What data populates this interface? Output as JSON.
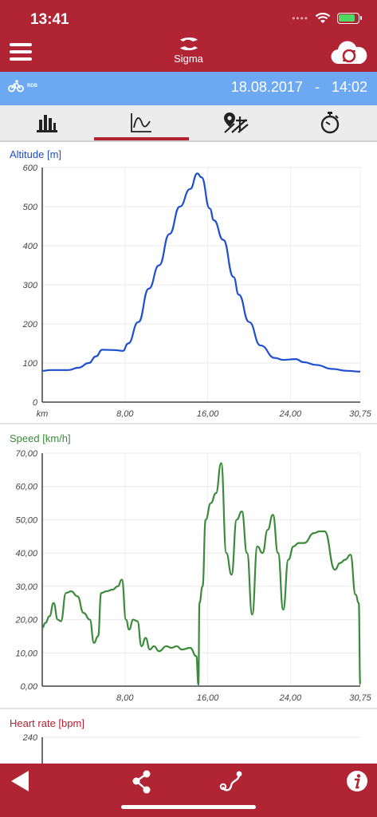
{
  "status": {
    "time": "13:41",
    "battery_level": 0.85
  },
  "header": {
    "app_name": "Sigma"
  },
  "info": {
    "activity_label": "RDB",
    "date": "18.08.2017",
    "separator": "-",
    "time": "14:02"
  },
  "tabs": [
    {
      "icon": "bar-chart-icon",
      "active": false
    },
    {
      "icon": "line-chart-icon",
      "active": true
    },
    {
      "icon": "map-route-icon",
      "active": false
    },
    {
      "icon": "stopwatch-icon",
      "active": false
    }
  ],
  "colors": {
    "brand_red": "#b02434",
    "info_blue": "#6da9f3",
    "altitude": "#1f4fcf",
    "speed": "#3c8a3c",
    "heart_rate": "#b02434"
  },
  "chart_data": [
    {
      "type": "line",
      "title": "Altitude [m]",
      "xlabel": "km",
      "x_ticks": [
        "8,00",
        "16,00",
        "24,00",
        "30,75"
      ],
      "y_ticks": [
        "0",
        "100",
        "200",
        "300",
        "400",
        "500",
        "600"
      ],
      "xlim": [
        0,
        30.75
      ],
      "ylim": [
        0,
        600
      ],
      "x": [
        0,
        0.8,
        2.5,
        3.5,
        4.5,
        5.2,
        5.8,
        7,
        7.8,
        8.3,
        9.3,
        10.3,
        11.3,
        12.3,
        13.3,
        14.3,
        15,
        15.4,
        16.2,
        16.6,
        17.5,
        18.5,
        19,
        20,
        21.1,
        22.5,
        23.3,
        24.5,
        25.3,
        26.5,
        28,
        29.5,
        30.75
      ],
      "values": [
        80,
        82,
        82,
        88,
        100,
        117,
        134,
        133,
        131,
        150,
        205,
        290,
        350,
        430,
        500,
        545,
        585,
        575,
        495,
        465,
        415,
        320,
        275,
        205,
        145,
        113,
        108,
        110,
        102,
        95,
        85,
        80,
        78
      ]
    },
    {
      "type": "line",
      "title": "Speed [km/h]",
      "xlabel": "",
      "x_ticks": [
        "8,00",
        "16,00",
        "24,00",
        "30,75"
      ],
      "y_ticks": [
        "0,00",
        "10,00",
        "20,00",
        "30,00",
        "40,00",
        "50,00",
        "60,00",
        "70,00"
      ],
      "xlim": [
        0,
        30.75
      ],
      "ylim": [
        0,
        70
      ],
      "x": [
        0,
        0.3,
        0.7,
        1.1,
        1.5,
        1.8,
        2.3,
        2.8,
        3.4,
        4,
        4.6,
        5,
        5.4,
        5.7,
        6.2,
        6.8,
        7.3,
        7.7,
        8.1,
        8.4,
        8.8,
        9.2,
        9.6,
        10,
        10.4,
        10.8,
        11.3,
        12,
        12.5,
        13,
        13.5,
        14.3,
        14.9,
        15.1,
        15.2,
        15.5,
        15.8,
        16.3,
        16.8,
        17.3,
        17.8,
        18.3,
        18.8,
        19.3,
        19.8,
        20.3,
        20.8,
        21.3,
        21.8,
        22.3,
        22.8,
        23.3,
        23.8,
        24.3,
        24.8,
        25.3,
        26.3,
        26.8,
        27.3,
        28.3,
        28.8,
        29.3,
        29.8,
        30.3,
        30.6,
        30.75
      ],
      "values": [
        17.5,
        19,
        21,
        25,
        20,
        19.5,
        28,
        28.5,
        27,
        22,
        20,
        13,
        15,
        28,
        28.5,
        29,
        30,
        32,
        20,
        17,
        20,
        19.5,
        12,
        14.5,
        11,
        12,
        10.5,
        12,
        11.5,
        12,
        11,
        11.5,
        9,
        0.5,
        25,
        30,
        50,
        55,
        58,
        67,
        40,
        33.5,
        50,
        52.5,
        40,
        21.5,
        42,
        40,
        47,
        51.5,
        40,
        23,
        38,
        42,
        43,
        43,
        46,
        46.5,
        46.5,
        35,
        37,
        38,
        39.5,
        27.5,
        25,
        0.5
      ]
    },
    {
      "type": "line",
      "title": "Heart rate [bpm]",
      "xlabel": "",
      "y_ticks": [
        "240"
      ],
      "ylim": [
        0,
        240
      ],
      "values": []
    }
  ]
}
